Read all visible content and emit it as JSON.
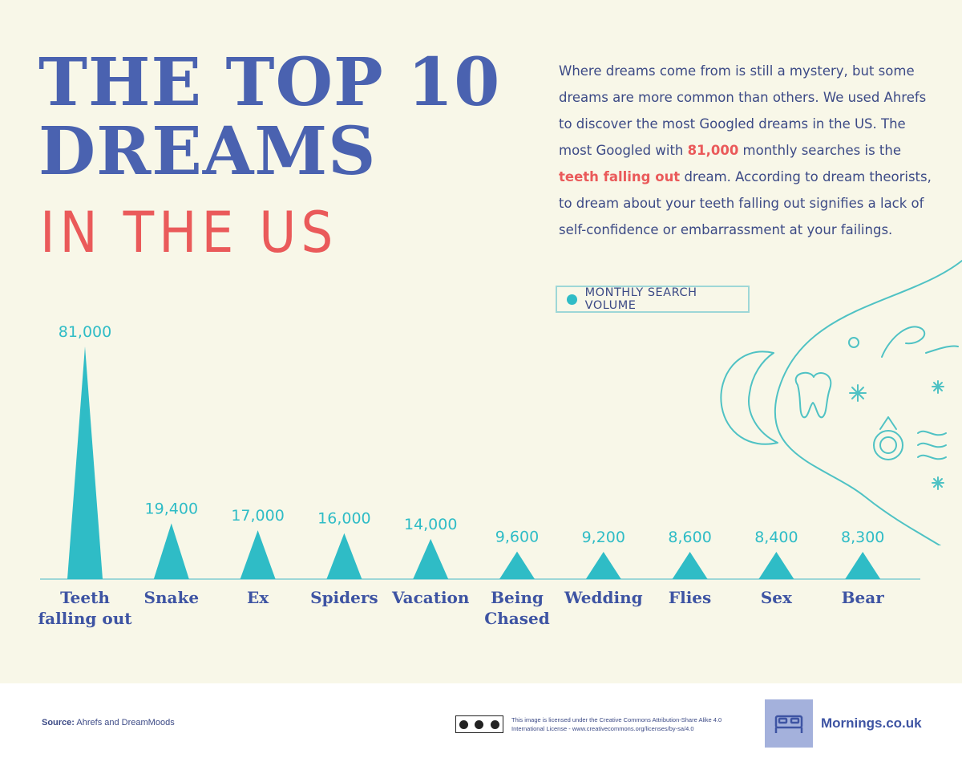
{
  "header": {
    "title_line1": "THE TOP 10",
    "title_line2": "DREAMS",
    "subtitle": "IN THE US"
  },
  "intro": {
    "part1": "Where dreams come from is still a mystery, but some dreams are more common than others. We used Ahrefs to discover the most Googled dreams in the US. The most Googled with ",
    "highlight_number": "81,000",
    "part2": " monthly searches is the ",
    "highlight_phrase": "teeth falling out",
    "part3": " dream. According to dream theorists, to dream about your teeth falling out signifies a lack of self-confidence or embarrassment at your failings."
  },
  "legend": {
    "label": "MONTHLY SEARCH VOLUME"
  },
  "colors": {
    "accent": "#2fbcc6",
    "title": "#4a62b0",
    "highlight": "#ea5a5a",
    "background": "#f8f7e8"
  },
  "chart_data": {
    "type": "bar",
    "categories": [
      "Teeth falling out",
      "Snake",
      "Ex",
      "Spiders",
      "Vacation",
      "Being Chased",
      "Wedding",
      "Flies",
      "Sex",
      "Bear"
    ],
    "category_lines": [
      [
        "Teeth",
        "falling out"
      ],
      [
        "Snake"
      ],
      [
        "Ex"
      ],
      [
        "Spiders"
      ],
      [
        "Vacation"
      ],
      [
        "Being",
        "Chased"
      ],
      [
        "Wedding"
      ],
      [
        "Flies"
      ],
      [
        "Sex"
      ],
      [
        "Bear"
      ]
    ],
    "series": [
      {
        "name": "MONTHLY SEARCH VOLUME",
        "values": [
          81000,
          19400,
          17000,
          16000,
          14000,
          9600,
          9200,
          8600,
          8400,
          8300
        ]
      }
    ],
    "data_labels": [
      "81,000",
      "19,400",
      "17,000",
      "16,000",
      "14,000",
      "9,600",
      "9,200",
      "8,600",
      "8,400",
      "8,300"
    ],
    "bar_shape": "triangle",
    "ylim": [
      0,
      81000
    ],
    "grid": false,
    "legend_position": "top-right"
  },
  "footer": {
    "source_label": "Source:",
    "source_text": " Ahrefs and DreamMoods",
    "license_text": "This image is licensed under the Creative Commons Attribution-Share Alike 4.0 International License - www.creativecommons.org/licenses/by-sa/4.0",
    "brand": "Mornings.co.uk",
    "brand_icon": "bed-icon",
    "cc_icon": "cc-by-sa-icon"
  }
}
